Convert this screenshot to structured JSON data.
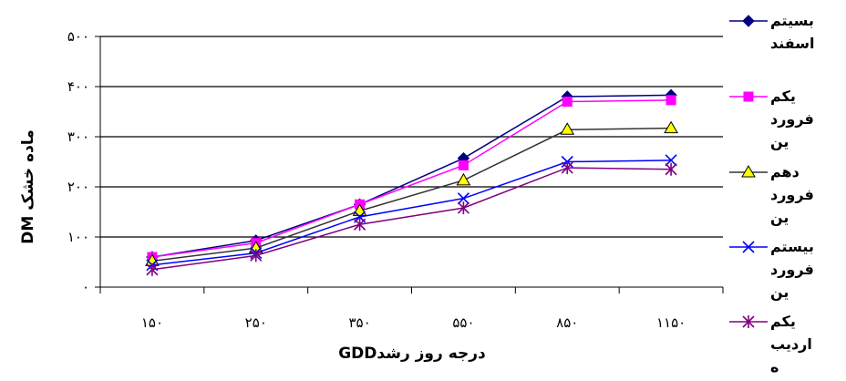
{
  "chart_data": {
    "type": "line",
    "categories": [
      "۱۵۰",
      "۲۵۰",
      "۳۵۰",
      "۵۵۰",
      "۸۵۰",
      "۱۱۵۰"
    ],
    "y_ticks": [
      "۰",
      "۱۰۰",
      "۲۰۰",
      "۳۰۰",
      "۴۰۰",
      "۵۰۰"
    ],
    "ylim": [
      0,
      500
    ],
    "xlabel": "درجه روز رشدGDD",
    "ylabel": "ماده خشک DM",
    "grid": true,
    "legend_position": "right",
    "series": [
      {
        "name": "بسیتم اسفند",
        "color": "#000080",
        "marker": "diamond",
        "values": [
          60,
          93,
          165,
          257,
          380,
          383
        ]
      },
      {
        "name": "یکم فروردین",
        "color": "#ff00ff",
        "marker": "square",
        "values": [
          60,
          88,
          165,
          243,
          370,
          373
        ]
      },
      {
        "name": "دهم فروردین",
        "color": "#333333",
        "marker": "triangle",
        "values": [
          52,
          78,
          152,
          213,
          314,
          317
        ]
      },
      {
        "name": "بیستم فروردین",
        "color": "#0000ff",
        "marker": "x",
        "values": [
          44,
          68,
          140,
          177,
          250,
          253
        ]
      },
      {
        "name": "یکم اردیبه",
        "color": "#800080",
        "marker": "star",
        "values": [
          35,
          63,
          125,
          158,
          238,
          235
        ]
      }
    ]
  }
}
